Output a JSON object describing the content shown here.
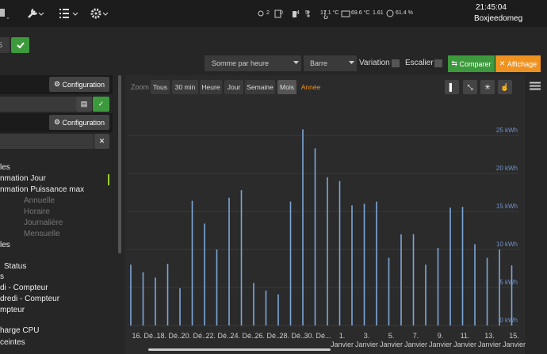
{
  "navbar": {
    "status": [
      "2",
      "0",
      "4",
      "5",
      "17.1 °C",
      "69.6 °C",
      "1.61",
      "61.4 %"
    ],
    "time": "21:45:04",
    "hostname": "Boxjeedomeg"
  },
  "top_input": "5",
  "toolbar": {
    "aggregation": "Somme par heure",
    "chart_type": "Barre",
    "variation": "Variation",
    "stairs": "Escalier",
    "compare": "Comparer",
    "display": "Affichage"
  },
  "sidebar": {
    "config_buttons": [
      "Configuration",
      "Configuration"
    ],
    "items": [
      "les",
      "nmation Jour",
      "nmation Puissance max",
      "Annuelle",
      "Horaire",
      "Journalière",
      "Mensuelle",
      "les",
      "Status",
      "s",
      "di - Compteur",
      "dredi - Compteur",
      "mpteur",
      "harge CPU",
      "ceintes"
    ]
  },
  "chart_data": {
    "type": "bar",
    "zoom_label": "Zoom",
    "zoom_buttons": [
      "Tous",
      "30 min",
      "Heure",
      "Jour",
      "Semaine",
      "Mois",
      "Année"
    ],
    "categories": [
      null,
      "16. Dé...",
      null,
      "18. Dé...",
      null,
      "20. Dé...",
      null,
      "22. Dé...",
      null,
      "24. Dé...",
      null,
      "26. Dé...",
      null,
      "28. Dé...",
      null,
      "30. Dé...",
      null,
      "1. Janvier",
      null,
      "3. Janvier",
      null,
      "5. Janvier",
      null,
      "7. Janvier",
      null,
      "9. Janvier",
      null,
      "11. Janvier",
      null,
      "13. Janvier",
      null,
      "15. Janvier"
    ],
    "values": [
      8.0,
      7.0,
      6.3,
      8.1,
      4.9,
      16.4,
      13.4,
      10.0,
      16.8,
      17.8,
      5.6,
      4.6,
      4.1,
      16.3,
      25.8,
      23.3,
      19.5,
      19.0,
      15.8,
      16.0,
      16.3,
      8.9,
      12.0,
      12.0,
      8.0,
      10.2,
      15.5,
      15.6,
      10.7,
      8.9,
      10.0,
      7.9
    ],
    "color": "#7ca6d8",
    "ylim": [
      0,
      30
    ],
    "yticks": [
      {
        "value": 0,
        "label": "0 kWh"
      },
      {
        "value": 5,
        "label": "5 kWh"
      },
      {
        "value": 10,
        "label": "10 kWh"
      },
      {
        "value": 15,
        "label": "15 kWh"
      },
      {
        "value": 20,
        "label": "20 kWh"
      },
      {
        "value": 25,
        "label": "25 kWh"
      }
    ],
    "grid": true
  }
}
